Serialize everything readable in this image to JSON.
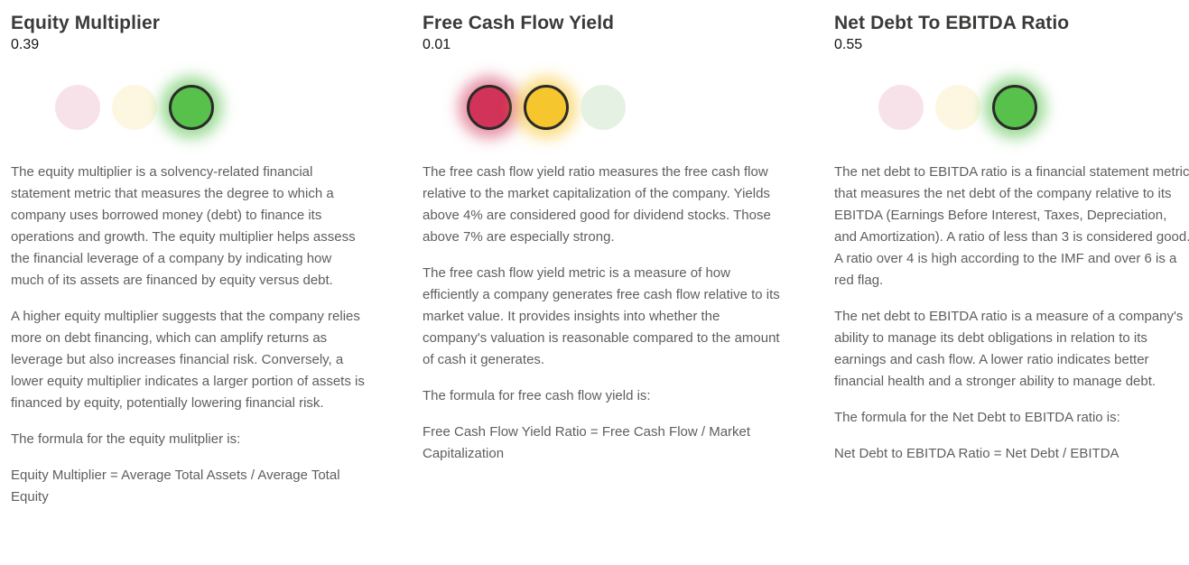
{
  "colors": {
    "red_active": "#d23359",
    "yellow_active": "#f6c62f",
    "green_active": "#57c14c",
    "red_inactive": "#f8e2ea",
    "yellow_inactive": "#fdf7e1",
    "green_inactive": "#e5f2e3",
    "light_ring": "#2b2a29",
    "title_text": "#3b3a39",
    "body_text": "#605e5c"
  },
  "cards": [
    {
      "title": "Equity Multiplier",
      "value": "0.39",
      "lights": [
        {
          "color": "red",
          "active": false
        },
        {
          "color": "yellow",
          "active": false
        },
        {
          "color": "green",
          "active": true
        }
      ],
      "paragraphs": [
        "The equity multiplier is a solvency-related financial statement metric that measures the degree to which a company uses borrowed money (debt) to finance its operations and growth. The equity multiplier helps assess the financial leverage of a company by indicating how much of its assets are financed by equity versus debt.",
        "A higher equity multiplier suggests that the company relies more on debt financing, which can amplify returns as leverage but also increases financial risk. Conversely, a lower equity multiplier indicates a larger portion of assets is financed by equity, potentially lowering financial risk.",
        "The formula for the equity mulitplier is:",
        "Equity Multiplier = Average Total Assets / Average Total Equity"
      ]
    },
    {
      "title": "Free Cash Flow Yield",
      "value": "0.01",
      "lights": [
        {
          "color": "red",
          "active": true
        },
        {
          "color": "yellow",
          "active": true
        },
        {
          "color": "green",
          "active": false
        }
      ],
      "paragraphs": [
        "The free cash flow yield ratio measures the free cash flow relative to the market capitalization of the company. Yields above 4% are considered good for dividend stocks. Those above 7% are especially strong.",
        "The free cash flow yield metric is a measure of how efficiently a company generates free cash flow relative to its market value. It provides insights into whether the company's valuation is reasonable compared to the amount of cash it generates.",
        "The formula for free cash flow yield is:",
        "Free Cash Flow Yield Ratio = Free Cash Flow / Market Capitalization"
      ]
    },
    {
      "title": "Net Debt To EBITDA Ratio",
      "value": "0.55",
      "lights": [
        {
          "color": "red",
          "active": false
        },
        {
          "color": "yellow",
          "active": false
        },
        {
          "color": "green",
          "active": true
        }
      ],
      "paragraphs": [
        "The net debt to EBITDA ratio is a financial statement metric that measures the net debt of the company relative to its EBITDA (Earnings Before Interest, Taxes, Depreciation, and Amortization). A ratio of less than 3 is considered good. A ratio over 4 is high according to the IMF and over 6 is a red flag.",
        "The net debt to EBITDA ratio is a measure of a company's ability to manage its debt obligations in relation to its earnings and cash flow. A lower ratio indicates better financial health and a stronger ability to manage debt.",
        "The formula for the Net Debt to EBITDA ratio is:",
        "Net Debt to EBITDA Ratio = Net Debt / EBITDA"
      ]
    }
  ]
}
